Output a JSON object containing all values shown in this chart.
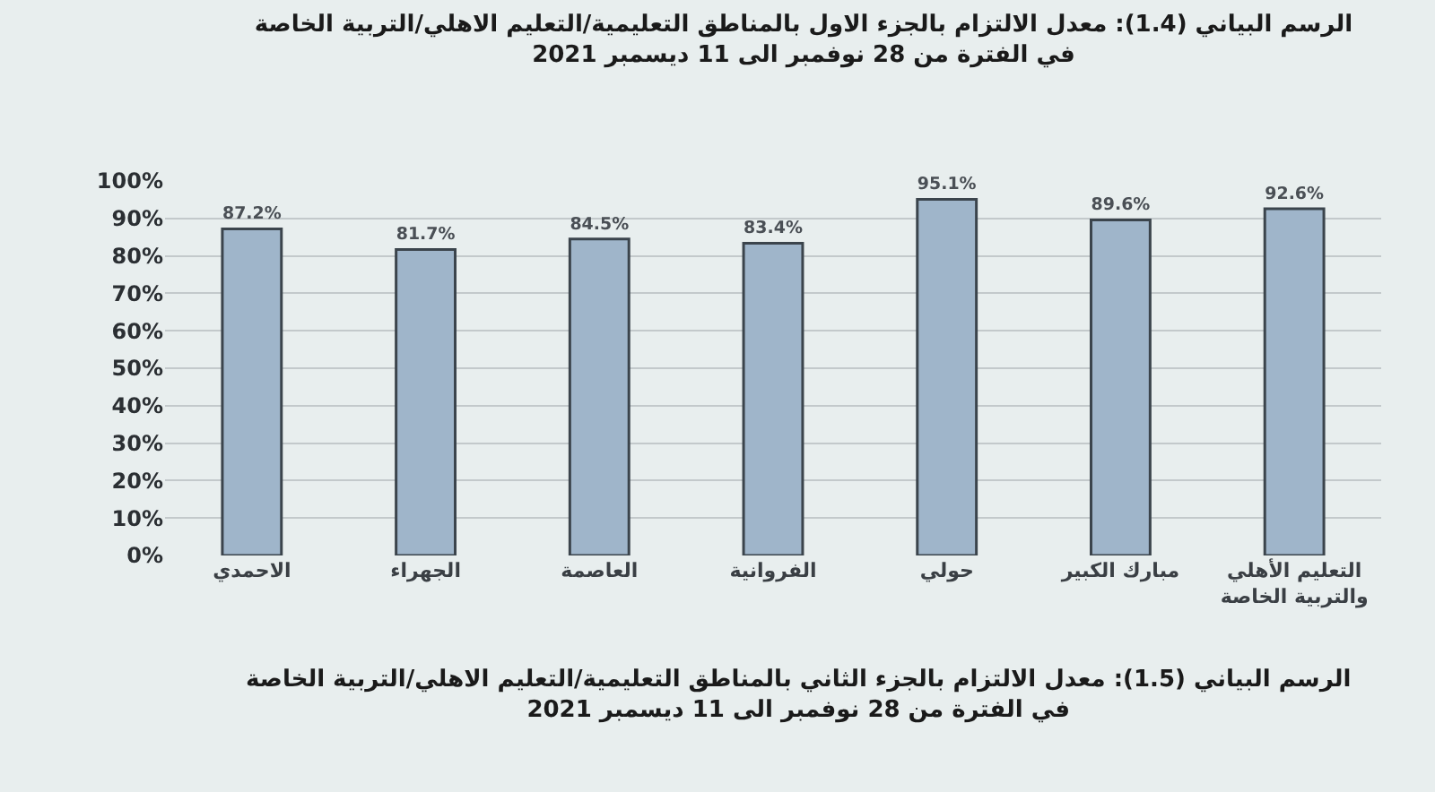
{
  "chart_data": {
    "type": "bar",
    "title": "الرسم البياني (1.4): معدل الالتزام بالجزء الاول بالمناطق التعليمية/التعليم الاهلي/التربية الخاصة",
    "subtitle": "في الفترة من 28 نوفمبر الى 11 ديسمبر 2021",
    "categories": [
      "الاحمدي",
      "الجهراء",
      "العاصمة",
      "الفروانية",
      "حولي",
      "مبارك الكبير",
      "التعليم الأهلي والتربية الخاصة"
    ],
    "values": [
      87.2,
      81.7,
      84.5,
      83.4,
      95.1,
      89.6,
      92.6
    ],
    "color": "#9fb5ca",
    "value_labels": [
      "87.2%",
      "81.7%",
      "84.5%",
      "83.4%",
      "95.1%",
      "89.6%",
      "92.6%"
    ],
    "ylim": [
      0,
      100
    ],
    "yticks": [
      {
        "value": 0,
        "label": "0%"
      },
      {
        "value": 10,
        "label": "10%"
      },
      {
        "value": 20,
        "label": "20%"
      },
      {
        "value": 30,
        "label": "30%"
      },
      {
        "value": 40,
        "label": "40%"
      },
      {
        "value": 50,
        "label": "50%"
      },
      {
        "value": 60,
        "label": "60%"
      },
      {
        "value": 70,
        "label": "70%"
      },
      {
        "value": 80,
        "label": "80%"
      },
      {
        "value": 90,
        "label": "90%"
      },
      {
        "value": 100,
        "label": "100%"
      }
    ],
    "grid": "y",
    "annotations": [
      "الرسم البياني (1.5): معدل الالتزام بالجزء الثاني بالمناطق التعليمية/التعليم الاهلي/التربية الخاصة\nفي الفترة من 28 نوفمبر الى 11 ديسمبر 2021"
    ]
  }
}
